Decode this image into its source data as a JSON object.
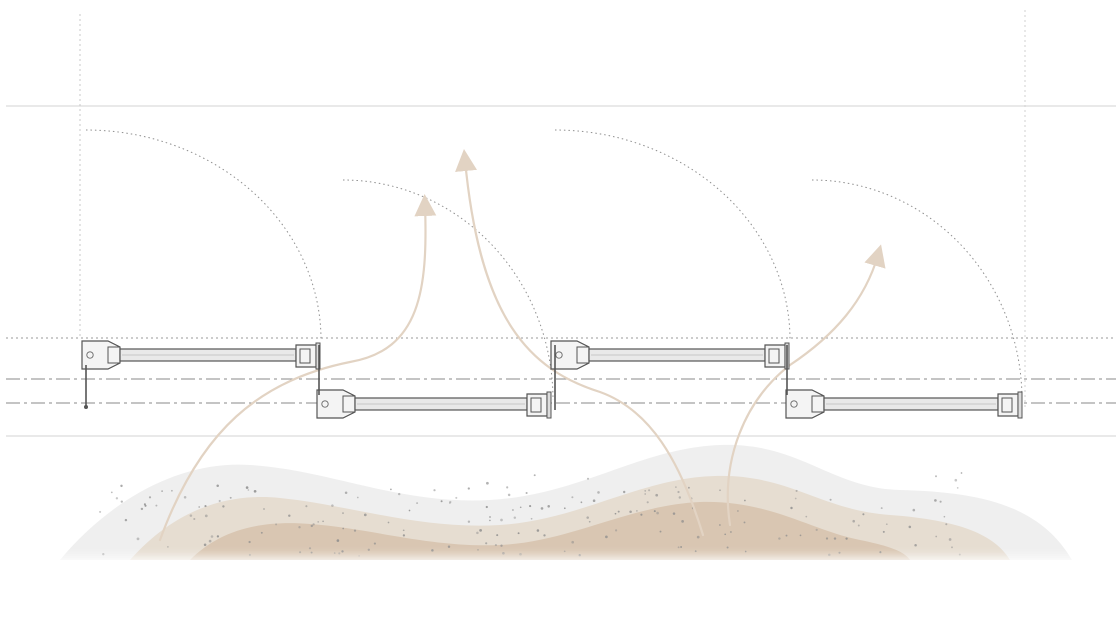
{
  "diagram": {
    "description_text": "",
    "colors": {
      "background": "#ffffff",
      "rail_line": "#e2e2e2",
      "guide_line": "#9a9a9a",
      "dash_dot_line": "#8a8a8a",
      "swing_arc": "#8f8f8f",
      "panel_stroke": "#555555",
      "panel_fill": "#f4f4f4",
      "panel_glass": "#e9e9e9",
      "airflow_arrow": "#e2d3c3",
      "dune_outer": "#efefef",
      "dune_mid": "#e6ddd1",
      "dune_inner": "#d9c6b2",
      "sand_dot": "#8c8c8c"
    },
    "icons": {
      "airflow": "arrow-icon",
      "hinge": "hinge-icon"
    },
    "folding_panels": 4,
    "airflow_arrows": 4,
    "caption": ""
  }
}
